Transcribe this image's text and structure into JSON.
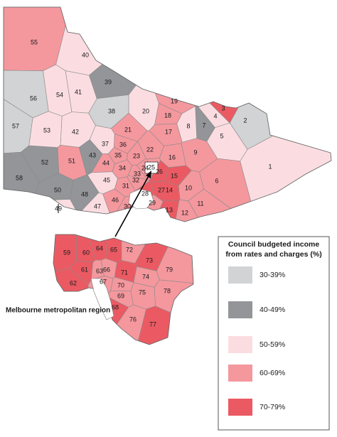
{
  "legend": {
    "title": [
      "Council budgeted income",
      "from rates and charges (%)"
    ],
    "items": [
      {
        "label": "30-39%",
        "color": "#d1d3d4"
      },
      {
        "label": "40-49%",
        "color": "#939598"
      },
      {
        "label": "50-59%",
        "color": "#fbdde1"
      },
      {
        "label": "60-69%",
        "color": "#f4989e"
      },
      {
        "label": "70-79%",
        "color": "#eb5a63"
      }
    ]
  },
  "metro_label": "Melbourne metropolitan region",
  "state_councils": [
    {
      "label": "1",
      "class": 2
    },
    {
      "label": "2",
      "class": 0
    },
    {
      "label": "3",
      "class": 4
    },
    {
      "label": "4",
      "class": 2
    },
    {
      "label": "5",
      "class": 2
    },
    {
      "label": "6",
      "class": 3
    },
    {
      "label": "7",
      "class": 1
    },
    {
      "label": "8",
      "class": 2
    },
    {
      "label": "9",
      "class": 3
    },
    {
      "label": "10",
      "class": 3
    },
    {
      "label": "11",
      "class": 3
    },
    {
      "label": "12",
      "class": 3
    },
    {
      "label": "13",
      "class": 4
    },
    {
      "label": "14",
      "class": 4
    },
    {
      "label": "15",
      "class": 4
    },
    {
      "label": "16",
      "class": 3
    },
    {
      "label": "17",
      "class": 3
    },
    {
      "label": "18",
      "class": 3
    },
    {
      "label": "19",
      "class": 3
    },
    {
      "label": "20",
      "class": 2
    },
    {
      "label": "21",
      "class": 3
    },
    {
      "label": "22",
      "class": 3
    },
    {
      "label": "23",
      "class": 3
    },
    {
      "label": "24",
      "class": 3
    },
    {
      "label": "25",
      "class": 3
    },
    {
      "label": "26",
      "class": 4
    },
    {
      "label": "27",
      "class": 4
    },
    {
      "label": "28",
      "class": 4
    },
    {
      "label": "29",
      "class": 3
    },
    {
      "label": "30",
      "class": 3
    },
    {
      "label": "31",
      "class": 3
    },
    {
      "label": "32",
      "class": 3
    },
    {
      "label": "33",
      "class": 3
    },
    {
      "label": "34",
      "class": 3
    },
    {
      "label": "35",
      "class": 3
    },
    {
      "label": "36",
      "class": 3
    },
    {
      "label": "37",
      "class": 2
    },
    {
      "label": "38",
      "class": 0
    },
    {
      "label": "39",
      "class": 1
    },
    {
      "label": "40",
      "class": 2
    },
    {
      "label": "41",
      "class": 2
    },
    {
      "label": "42",
      "class": 2
    },
    {
      "label": "43",
      "class": 1
    },
    {
      "label": "44",
      "class": 3
    },
    {
      "label": "45",
      "class": 2
    },
    {
      "label": "46",
      "class": 3
    },
    {
      "label": "47",
      "class": 2
    },
    {
      "label": "48",
      "class": 1
    },
    {
      "label": "49",
      "class": 2
    },
    {
      "label": "50",
      "class": 1
    },
    {
      "label": "51",
      "class": 3
    },
    {
      "label": "52",
      "class": 1
    },
    {
      "label": "53",
      "class": 2
    },
    {
      "label": "54",
      "class": 2
    },
    {
      "label": "55",
      "class": 3
    },
    {
      "label": "56",
      "class": 0
    },
    {
      "label": "57",
      "class": 0
    },
    {
      "label": "58",
      "class": 1
    }
  ],
  "metro_councils": [
    {
      "label": "59",
      "class": 4
    },
    {
      "label": "60",
      "class": 4
    },
    {
      "label": "61",
      "class": 4
    },
    {
      "label": "62",
      "class": 4
    },
    {
      "label": "63",
      "class": 3
    },
    {
      "label": "64",
      "class": 4
    },
    {
      "label": "65",
      "class": 4
    },
    {
      "label": "66",
      "class": 3
    },
    {
      "label": "67",
      "class": 3
    },
    {
      "label": "68",
      "class": 4
    },
    {
      "label": "69",
      "class": 3
    },
    {
      "label": "70",
      "class": 3
    },
    {
      "label": "71",
      "class": 4
    },
    {
      "label": "72",
      "class": 3
    },
    {
      "label": "73",
      "class": 4
    },
    {
      "label": "74",
      "class": 3
    },
    {
      "label": "75",
      "class": 3
    },
    {
      "label": "76",
      "class": 3
    },
    {
      "label": "77",
      "class": 4
    },
    {
      "label": "78",
      "class": 3
    },
    {
      "label": "79",
      "class": 3
    }
  ]
}
